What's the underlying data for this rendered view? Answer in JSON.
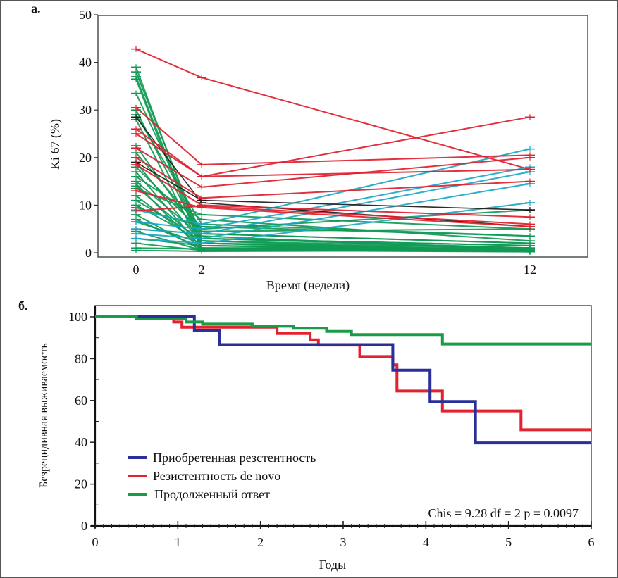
{
  "chart_data": [
    {
      "id": "a",
      "panel_label": "а.",
      "type": "line",
      "title": "",
      "xlabel": "Время (недели)",
      "ylabel": "Ki 67 (%)",
      "xlim": [
        -2.3,
        13.9
      ],
      "ylim": [
        -0.8,
        50
      ],
      "x": [
        0,
        2,
        12
      ],
      "xticks": [
        0,
        2,
        12
      ],
      "yticks": [
        0,
        10,
        20,
        30,
        40,
        50
      ],
      "grid": false,
      "colors": {
        "red": "#e0202e",
        "green": "#119a55",
        "cyan": "#1aa7c4",
        "black": "#1a1a1a"
      },
      "series": [
        {
          "group": "red",
          "values": [
            42.8,
            36.8,
            17.5
          ]
        },
        {
          "group": "red",
          "values": [
            30.5,
            18.5,
            20.5
          ]
        },
        {
          "group": "red",
          "values": [
            26.0,
            16.0,
            28.5
          ]
        },
        {
          "group": "red",
          "values": [
            25.0,
            16.0,
            17.5
          ]
        },
        {
          "group": "red",
          "values": [
            22.0,
            13.8,
            20.0
          ]
        },
        {
          "group": "red",
          "values": [
            20.0,
            11.5,
            15.0
          ]
        },
        {
          "group": "red",
          "values": [
            18.5,
            10.0,
            7.5
          ]
        },
        {
          "group": "red",
          "values": [
            13.0,
            9.5,
            5.5
          ]
        },
        {
          "group": "red",
          "values": [
            8.8,
            9.8,
            6.0
          ]
        },
        {
          "group": "cyan",
          "values": [
            9.0,
            6.0,
            21.8
          ]
        },
        {
          "group": "cyan",
          "values": [
            6.5,
            5.0,
            18.0
          ]
        },
        {
          "group": "cyan",
          "values": [
            5.0,
            4.0,
            17.0
          ]
        },
        {
          "group": "cyan",
          "values": [
            4.0,
            3.0,
            14.5
          ]
        },
        {
          "group": "cyan",
          "values": [
            3.0,
            2.0,
            10.5
          ]
        },
        {
          "group": "green",
          "values": [
            39.0,
            2.0,
            0.5
          ]
        },
        {
          "group": "green",
          "values": [
            38.0,
            3.0,
            1.0
          ]
        },
        {
          "group": "green",
          "values": [
            37.0,
            1.5,
            0.8
          ]
        },
        {
          "group": "green",
          "values": [
            36.5,
            0.5,
            0.5
          ]
        },
        {
          "group": "green",
          "values": [
            33.5,
            4.0,
            2.0
          ]
        },
        {
          "group": "green",
          "values": [
            30.0,
            2.5,
            1.0
          ]
        },
        {
          "group": "green",
          "values": [
            29.0,
            6.0,
            3.5
          ]
        },
        {
          "group": "green",
          "values": [
            28.0,
            1.0,
            0.3
          ]
        },
        {
          "group": "green",
          "values": [
            22.5,
            3.0,
            1.5
          ]
        },
        {
          "group": "green",
          "values": [
            21.0,
            5.0,
            9.0
          ]
        },
        {
          "group": "green",
          "values": [
            19.0,
            2.0,
            0.5
          ]
        },
        {
          "group": "green",
          "values": [
            18.0,
            4.5,
            5.0
          ]
        },
        {
          "group": "green",
          "values": [
            17.0,
            1.0,
            0.8
          ]
        },
        {
          "group": "green",
          "values": [
            16.0,
            7.0,
            2.5
          ]
        },
        {
          "group": "green",
          "values": [
            15.0,
            3.5,
            0.5
          ]
        },
        {
          "group": "green",
          "values": [
            14.5,
            0.5,
            0.2
          ]
        },
        {
          "group": "green",
          "values": [
            14.0,
            2.0,
            1.0
          ]
        },
        {
          "group": "green",
          "values": [
            13.5,
            8.0,
            5.0
          ]
        },
        {
          "group": "green",
          "values": [
            12.0,
            1.5,
            0.5
          ]
        },
        {
          "group": "green",
          "values": [
            11.0,
            3.0,
            1.5
          ]
        },
        {
          "group": "green",
          "values": [
            10.0,
            2.5,
            0.3
          ]
        },
        {
          "group": "green",
          "values": [
            9.5,
            5.5,
            3.5
          ]
        },
        {
          "group": "green",
          "values": [
            8.0,
            0.5,
            0.5
          ]
        },
        {
          "group": "green",
          "values": [
            7.0,
            1.0,
            1.0
          ]
        },
        {
          "group": "green",
          "values": [
            6.5,
            2.0,
            0.2
          ]
        },
        {
          "group": "green",
          "values": [
            5.0,
            4.0,
            2.0
          ]
        },
        {
          "group": "green",
          "values": [
            4.5,
            0.5,
            0.5
          ]
        },
        {
          "group": "green",
          "values": [
            3.0,
            1.5,
            0.3
          ]
        },
        {
          "group": "green",
          "values": [
            2.0,
            0.5,
            1.0
          ]
        },
        {
          "group": "green",
          "values": [
            1.0,
            0.8,
            0.2
          ]
        },
        {
          "group": "green",
          "values": [
            0.5,
            0.3,
            0.5
          ]
        },
        {
          "group": "black",
          "values": [
            28.5,
            10.5,
            5.5
          ]
        },
        {
          "group": "black",
          "values": [
            19.0,
            11.0,
            9.0
          ]
        }
      ]
    },
    {
      "id": "b",
      "panel_label": "б.",
      "type": "line",
      "step": true,
      "title": "",
      "xlabel": "Годы",
      "ylabel": "Безрецидивная выживаемость",
      "xlim": [
        0,
        6
      ],
      "ylim": [
        0,
        105
      ],
      "xticks": [
        0,
        1,
        2,
        3,
        4,
        5,
        6
      ],
      "yticks": [
        0,
        20,
        40,
        60,
        80,
        100
      ],
      "grid": false,
      "legend_position": "lower-left",
      "annotation": "Chis = 9.28 df = 2 p = 0.0097",
      "series": [
        {
          "name": "Приобретенная резстентность",
          "color": "#2b2f9a",
          "x": [
            0,
            1.2,
            1.5,
            3.6,
            4.05,
            4.6,
            6
          ],
          "y": [
            100,
            93.5,
            86.7,
            74.5,
            59.5,
            39.7,
            39.7
          ]
        },
        {
          "name": "Резистентность de novo",
          "color": "#e3222f",
          "x": [
            0,
            0.55,
            0.95,
            1.05,
            2.2,
            2.6,
            2.7,
            3.2,
            3.6,
            3.65,
            4.2,
            5.15,
            6
          ],
          "y": [
            100,
            99.5,
            97.5,
            95,
            92,
            89,
            86.5,
            81,
            77,
            64.5,
            55,
            46,
            46
          ]
        },
        {
          "name": "Продолженный ответ",
          "color": "#1a9b48",
          "x": [
            0,
            0.5,
            1.1,
            1.3,
            1.9,
            2.4,
            2.8,
            3.1,
            4.2,
            6
          ],
          "y": [
            100,
            99,
            97.5,
            96.5,
            95.5,
            94.5,
            93,
            91.5,
            87,
            87
          ]
        }
      ]
    }
  ]
}
